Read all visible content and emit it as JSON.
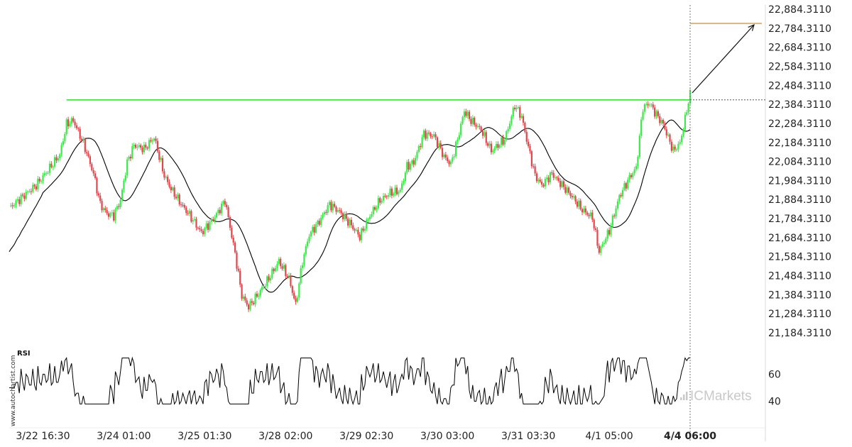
{
  "chart_data": [
    {
      "type": "candlestick",
      "title": "",
      "y_ticks": [
        "22,884.3110",
        "22,784.3110",
        "22,684.3110",
        "22,584.3110",
        "22,484.3110",
        "22,384.3110",
        "22,284.3110",
        "22,184.3110",
        "22,084.3110",
        "21,984.3110",
        "21,884.3110",
        "21,784.3110",
        "21,684.3110",
        "21,584.3110",
        "21,484.3110",
        "21,384.3110",
        "21,284.3110",
        "21,184.3110"
      ],
      "ylim": [
        21117,
        22907
      ],
      "x_ticks": [
        "3/22 16:30",
        "3/24 01:00",
        "3/25 01:30",
        "3/28 02:00",
        "3/29 02:30",
        "3/30 03:00",
        "3/31 03:30",
        "4/1 05:00",
        "4/4 06:00"
      ],
      "x_tick_index": [
        20,
        68,
        116,
        164,
        212,
        260,
        308,
        356,
        404
      ],
      "highlight_x_tick": "4/4 06:00",
      "anchors": [
        [
          0,
          21840
        ],
        [
          8,
          21900
        ],
        [
          16,
          21960
        ],
        [
          24,
          22050
        ],
        [
          30,
          22120
        ],
        [
          34,
          22280
        ],
        [
          38,
          22300
        ],
        [
          44,
          22180
        ],
        [
          50,
          22020
        ],
        [
          54,
          21860
        ],
        [
          58,
          21810
        ],
        [
          62,
          21800
        ],
        [
          66,
          21880
        ],
        [
          70,
          22080
        ],
        [
          74,
          22170
        ],
        [
          80,
          22150
        ],
        [
          86,
          22210
        ],
        [
          92,
          22010
        ],
        [
          96,
          21940
        ],
        [
          102,
          21860
        ],
        [
          108,
          21790
        ],
        [
          114,
          21710
        ],
        [
          120,
          21770
        ],
        [
          124,
          21820
        ],
        [
          128,
          21880
        ],
        [
          134,
          21600
        ],
        [
          138,
          21380
        ],
        [
          142,
          21320
        ],
        [
          148,
          21390
        ],
        [
          154,
          21470
        ],
        [
          160,
          21560
        ],
        [
          166,
          21470
        ],
        [
          170,
          21330
        ],
        [
          174,
          21560
        ],
        [
          178,
          21700
        ],
        [
          184,
          21770
        ],
        [
          190,
          21860
        ],
        [
          196,
          21820
        ],
        [
          202,
          21760
        ],
        [
          208,
          21690
        ],
        [
          214,
          21800
        ],
        [
          220,
          21880
        ],
        [
          226,
          21920
        ],
        [
          232,
          21930
        ],
        [
          236,
          22060
        ],
        [
          240,
          22080
        ],
        [
          246,
          22230
        ],
        [
          252,
          22220
        ],
        [
          258,
          22110
        ],
        [
          262,
          22070
        ],
        [
          266,
          22200
        ],
        [
          270,
          22350
        ],
        [
          274,
          22300
        ],
        [
          280,
          22250
        ],
        [
          286,
          22140
        ],
        [
          294,
          22200
        ],
        [
          300,
          22380
        ],
        [
          304,
          22320
        ],
        [
          308,
          22160
        ],
        [
          312,
          22010
        ],
        [
          316,
          21960
        ],
        [
          322,
          22020
        ],
        [
          328,
          21960
        ],
        [
          334,
          21900
        ],
        [
          340,
          21830
        ],
        [
          346,
          21790
        ],
        [
          350,
          21610
        ],
        [
          356,
          21720
        ],
        [
          362,
          21900
        ],
        [
          368,
          22000
        ],
        [
          372,
          22050
        ],
        [
          376,
          22370
        ],
        [
          380,
          22390
        ],
        [
          384,
          22330
        ],
        [
          388,
          22280
        ],
        [
          394,
          22140
        ],
        [
          398,
          22180
        ],
        [
          402,
          22350
        ],
        [
          404,
          22460
        ]
      ],
      "moving_average_period": 20,
      "resistance_level": 22408,
      "resistance_start_index": 34,
      "target_level": 22810,
      "colors": {
        "bullish": "#3ee84a",
        "bearish": "#e0474c",
        "resistance": "#33e533",
        "target": "#d2a05a",
        "moving_average": "#000000"
      }
    },
    {
      "type": "line",
      "title": "RSI",
      "y_ticks": [
        "60",
        "40"
      ],
      "ylim": [
        22,
        78
      ]
    }
  ],
  "watermark": "www.autochartist.com",
  "brand": "ICMarkets"
}
